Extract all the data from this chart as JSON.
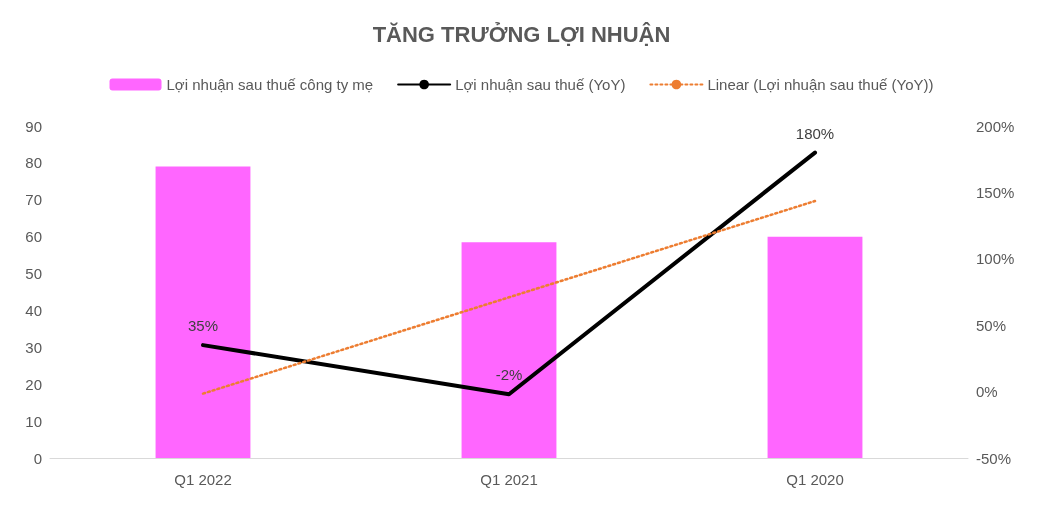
{
  "chart_data": {
    "type": "bar",
    "title": "TĂNG TRƯỞNG LỢI NHUẬN",
    "categories": [
      "Q1 2022",
      "Q1 2021",
      "Q1 2020"
    ],
    "series": [
      {
        "name": "Lợi nhuận sau thuế công ty mẹ",
        "color": "#ff66ff",
        "values": [
          79,
          58.5,
          60
        ]
      },
      {
        "name": "Lợi nhuận sau thuế (YoY)",
        "type": "line",
        "axis": "y2",
        "color": "#000000",
        "values": [
          35,
          -2,
          180
        ],
        "value_labels": [
          "35%",
          "-2%",
          "180%"
        ],
        "line_style": "solid"
      },
      {
        "name": "Linear (Lợi nhuận sau thuế (YoY))",
        "type": "line",
        "axis": "y2",
        "color": "#ed7d31",
        "values": [
          -1.5,
          71,
          143.5
        ],
        "line_style": "dotted"
      }
    ],
    "ylim": [
      0,
      90
    ],
    "yticks": [
      0,
      10,
      20,
      30,
      40,
      50,
      60,
      70,
      80,
      90
    ],
    "y2lim": [
      -50,
      200
    ],
    "y2ticks": [
      {
        "value": -50,
        "label": "-50%"
      },
      {
        "value": 0,
        "label": "0%"
      },
      {
        "value": 50,
        "label": "50%"
      },
      {
        "value": 100,
        "label": "100%"
      },
      {
        "value": 150,
        "label": "150%"
      },
      {
        "value": 200,
        "label": "200%"
      }
    ],
    "grid": false,
    "legend": "top",
    "marker": "none"
  }
}
